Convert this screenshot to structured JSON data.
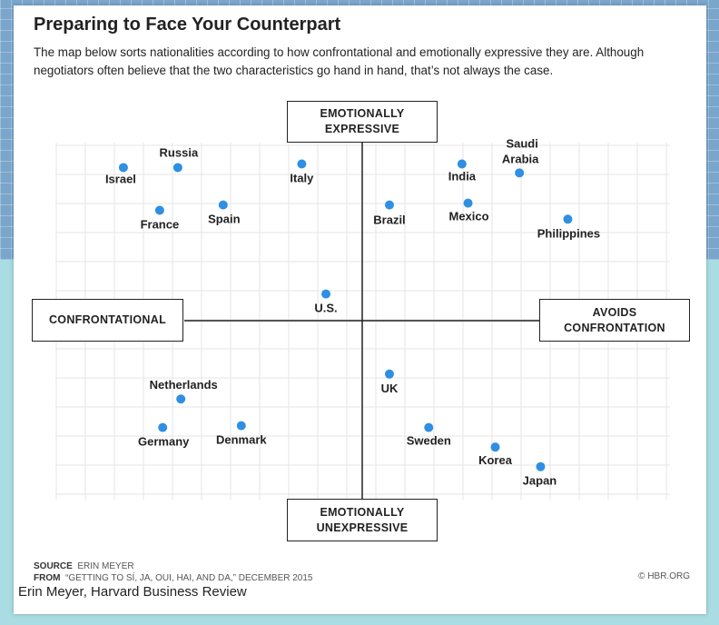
{
  "title": "Preparing to Face Your Counterpart",
  "subtitle": "The map below sorts nationalities according to how confrontational and emotionally expressive they are. Although negotiators often believe that the two characteristics go hand in hand, that’s not always the case.",
  "chart_data": {
    "type": "scatter",
    "xlabel_left": "CONFRONTATIONAL",
    "xlabel_right": "AVOIDS CONFRONTATION",
    "ylabel_top": "EMOTIONALLY EXPRESSIVE",
    "ylabel_bottom": "EMOTIONALLY UNEXPRESSIVE",
    "xlim": [
      -10,
      10
    ],
    "ylim": [
      -10,
      10
    ],
    "grid": true,
    "point_color": "#2f8fe3",
    "points": [
      {
        "name": "Israel",
        "x": -7.9,
        "y": 8.6
      },
      {
        "name": "Russia",
        "x": -6.1,
        "y": 8.6
      },
      {
        "name": "France",
        "x": -6.7,
        "y": 6.2
      },
      {
        "name": "Spain",
        "x": -4.6,
        "y": 6.5
      },
      {
        "name": "Italy",
        "x": -2.0,
        "y": 8.8
      },
      {
        "name": "Brazil",
        "x": 0.9,
        "y": 6.5
      },
      {
        "name": "India",
        "x": 3.3,
        "y": 8.8
      },
      {
        "name": "Mexico",
        "x": 3.5,
        "y": 6.6
      },
      {
        "name": "Saudi Arabia",
        "x": 5.2,
        "y": 8.3
      },
      {
        "name": "Philippines",
        "x": 6.8,
        "y": 5.7
      },
      {
        "name": "U.S.",
        "x": -1.2,
        "y": 1.5
      },
      {
        "name": "UK",
        "x": 0.9,
        "y": -3.0
      },
      {
        "name": "Netherlands",
        "x": -6.0,
        "y": -4.4
      },
      {
        "name": "Germany",
        "x": -6.6,
        "y": -6.0
      },
      {
        "name": "Denmark",
        "x": -4.0,
        "y": -5.9
      },
      {
        "name": "Sweden",
        "x": 2.2,
        "y": -6.0
      },
      {
        "name": "Korea",
        "x": 4.4,
        "y": -7.1
      },
      {
        "name": "Japan",
        "x": 5.9,
        "y": -8.2
      }
    ]
  },
  "footer": {
    "source_label": "SOURCE",
    "source_value": "ERIN MEYER",
    "from_label": "FROM",
    "from_value": "“GETTING TO SÍ, JA, OUI, HAI, AND DA,” DECEMBER 2015",
    "credit": "© HBR.ORG"
  },
  "caption": "Erin Meyer, Harvard Business Review"
}
